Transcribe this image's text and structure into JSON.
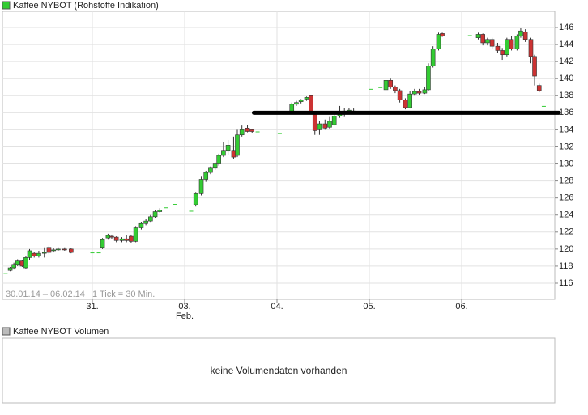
{
  "chart_data": {
    "type": "candlestick",
    "period": "30.01.14 – 06.02.14",
    "interval": "1 Tick = 30 Min.",
    "xlim": [
      -0.974,
      5.009
    ],
    "xticks": [
      {
        "value": 0,
        "label": "31."
      },
      {
        "value": 1,
        "label": "03."
      },
      {
        "value": 2,
        "label": "04."
      },
      {
        "value": 3,
        "label": "05."
      },
      {
        "value": 4,
        "label": "06."
      }
    ],
    "month_label": {
      "value": 1,
      "label": "Feb."
    },
    "ylim": [
      114.1,
      147.9
    ],
    "yticks": [
      116,
      118,
      120,
      122,
      124,
      126,
      128,
      130,
      132,
      134,
      136,
      138,
      140,
      142,
      144,
      146
    ],
    "grid": true,
    "series": [
      {
        "name": "Kaffee NYBOT (Rohstoffe Indikation)",
        "color": "#33cc33",
        "up_color": "#33cc33",
        "down_color": "#cc3333",
        "x": [
          -0.94,
          -0.89,
          -0.85,
          -0.81,
          -0.76,
          -0.72,
          -0.68,
          -0.63,
          -0.58,
          -0.52,
          -0.47,
          -0.42,
          -0.37,
          -0.3,
          -0.23,
          0,
          0.07,
          0.11,
          0.17,
          0.21,
          0.26,
          0.32,
          0.37,
          0.42,
          0.47,
          0.53,
          0.58,
          0.63,
          0.68,
          0.73,
          0.8,
          0.89,
          1.07,
          1.12,
          1.18,
          1.23,
          1.28,
          1.33,
          1.37,
          1.42,
          1.47,
          1.53,
          1.57,
          1.62,
          1.68,
          1.73,
          1.79,
          2.03,
          2.16,
          2.21,
          2.26,
          2.32,
          2.37,
          2.41,
          2.46,
          2.52,
          2.57,
          2.62,
          2.68,
          2.73,
          2.78,
          2.83,
          3.02,
          3.12,
          3.18,
          3.23,
          3.28,
          3.33,
          3.39,
          3.44,
          3.49,
          3.54,
          3.6,
          3.64,
          3.69,
          3.75,
          3.79,
          4.09,
          4.18,
          4.23,
          4.28,
          4.33,
          4.39,
          4.44,
          4.49,
          4.54,
          4.6,
          4.64,
          4.69,
          4.75,
          4.79,
          4.84,
          4.89
        ],
        "open": [
          117.2,
          117.5,
          117.8,
          118.2,
          118.6,
          117.8,
          119.0,
          119.5,
          119.2,
          119.5,
          120.2,
          119.8,
          119.9,
          120.0,
          120.0,
          119.6,
          119.6,
          120.2,
          121.3,
          121.5,
          121.4,
          121.0,
          121.2,
          121.5,
          120.9,
          122.5,
          123.0,
          123.3,
          123.8,
          124.4,
          124.9,
          125.3,
          124.5,
          125.2,
          126.5,
          128.2,
          129.0,
          129.5,
          130.0,
          131.0,
          131.5,
          131.5,
          131.0,
          133.4,
          134.2,
          134.0,
          133.8,
          133.6,
          136.0,
          137.0,
          137.3,
          137.6,
          138.0,
          136.0,
          134.0,
          134.7,
          134.3,
          134.6,
          135.6,
          136.0,
          136.2,
          136.2,
          138.8,
          139.0,
          138.7,
          139.8,
          139.0,
          138.6,
          137.5,
          136.6,
          138.2,
          138.5,
          138.3,
          138.7,
          141.5,
          143.5,
          145.3,
          145.1,
          144.8,
          145.2,
          144.2,
          144.6,
          143.8,
          143.3,
          142.8,
          144.6,
          143.5,
          145.0,
          145.5,
          144.6,
          142.6,
          139.2,
          136.8
        ],
        "high": [
          117.2,
          117.9,
          118.4,
          118.8,
          118.7,
          119.2,
          120.0,
          119.7,
          119.8,
          120.2,
          120.4,
          120.1,
          120.2,
          120.2,
          120.1,
          119.6,
          119.6,
          121.3,
          121.8,
          121.7,
          121.5,
          121.4,
          121.6,
          121.7,
          122.7,
          123.2,
          123.5,
          124.0,
          124.6,
          124.8,
          124.9,
          125.3,
          124.5,
          126.7,
          128.5,
          129.2,
          129.7,
          130.2,
          131.2,
          132.6,
          132.8,
          133.2,
          134.0,
          134.5,
          134.6,
          134.1,
          133.8,
          133.6,
          137.2,
          137.4,
          137.6,
          137.9,
          138.1,
          136.2,
          135.0,
          135.2,
          135.5,
          136.0,
          136.8,
          136.6,
          136.6,
          136.5,
          138.8,
          139.0,
          140.0,
          140.0,
          139.2,
          138.8,
          137.7,
          138.5,
          138.8,
          138.8,
          139.0,
          141.8,
          143.8,
          145.4,
          145.4,
          145.1,
          145.4,
          145.3,
          144.8,
          144.8,
          144.2,
          143.6,
          144.8,
          145.0,
          145.2,
          146.0,
          145.8,
          144.8,
          142.8,
          139.4,
          136.8
        ],
        "low": [
          117.2,
          117.4,
          117.6,
          118.0,
          117.9,
          117.7,
          118.7,
          119.0,
          119.0,
          119.0,
          119.4,
          119.6,
          119.8,
          119.8,
          119.5,
          119.6,
          119.6,
          120.0,
          121.1,
          121.2,
          120.8,
          120.8,
          120.8,
          120.7,
          120.8,
          122.3,
          122.8,
          123.1,
          123.6,
          124.3,
          124.9,
          125.3,
          124.5,
          125.0,
          126.3,
          127.9,
          128.8,
          129.3,
          129.8,
          130.8,
          131.0,
          130.6,
          130.8,
          133.2,
          133.7,
          133.6,
          133.8,
          133.6,
          135.9,
          136.8,
          137.1,
          137.4,
          135.8,
          133.4,
          133.4,
          134.0,
          134.1,
          134.5,
          135.4,
          135.5,
          135.8,
          135.9,
          138.8,
          139.0,
          138.5,
          138.8,
          138.3,
          137.2,
          136.4,
          136.5,
          138.0,
          138.1,
          138.2,
          138.6,
          141.3,
          143.3,
          144.9,
          145.1,
          144.6,
          143.9,
          143.9,
          143.5,
          143.0,
          142.2,
          142.6,
          143.3,
          143.3,
          144.8,
          144.3,
          141.8,
          139.2,
          138.4,
          136.8
        ],
        "close": [
          117.2,
          117.8,
          118.2,
          118.6,
          118.0,
          119.0,
          119.8,
          119.2,
          119.5,
          119.6,
          119.6,
          119.9,
          120.0,
          119.9,
          119.6,
          119.6,
          119.6,
          121.1,
          121.6,
          121.4,
          121.0,
          121.2,
          121.0,
          120.9,
          122.5,
          123.0,
          123.3,
          123.8,
          124.4,
          124.6,
          124.9,
          125.3,
          124.5,
          126.5,
          128.2,
          129.0,
          129.5,
          130.0,
          131.0,
          131.5,
          132.2,
          130.8,
          133.4,
          134.0,
          133.8,
          133.8,
          133.8,
          133.6,
          137.0,
          137.2,
          137.5,
          137.8,
          136.0,
          133.9,
          134.7,
          134.2,
          135.0,
          135.6,
          136.0,
          136.2,
          136.3,
          136.0,
          138.8,
          139.0,
          139.8,
          139.0,
          138.6,
          137.5,
          136.6,
          138.2,
          138.5,
          138.3,
          138.7,
          141.5,
          143.5,
          145.2,
          145.0,
          145.1,
          145.2,
          144.2,
          144.6,
          143.8,
          143.3,
          142.8,
          144.6,
          143.5,
          145.0,
          145.6,
          144.6,
          142.6,
          140.3,
          138.6,
          136.8
        ]
      }
    ],
    "hline": {
      "value": 136,
      "x_from": 1.75,
      "color": "#000000"
    },
    "volume_panel": {
      "legend": "Kaffee NYBOT Volumen",
      "color": "#bbbbbb",
      "message": "keine Volumendaten vorhanden"
    }
  }
}
